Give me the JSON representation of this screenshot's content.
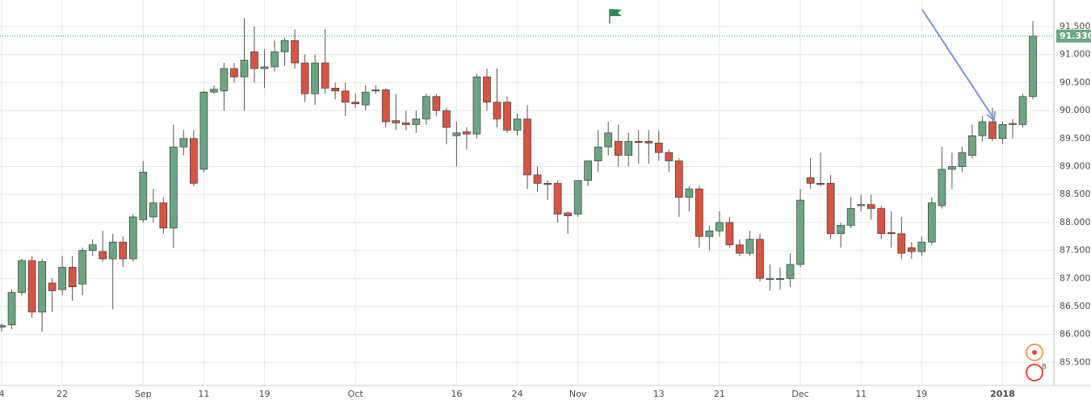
{
  "chart_data": {
    "type": "candlestick",
    "up_color": "#6ba583",
    "down_color": "#d75442",
    "grid": true,
    "ylim": [
      85.088,
      91.975
    ],
    "yticks": [
      {
        "value": 91.5,
        "label": "91.500"
      },
      {
        "value": 91.0,
        "label": "91.000"
      },
      {
        "value": 90.5,
        "label": "90.500"
      },
      {
        "value": 90.0,
        "label": "90.000"
      },
      {
        "value": 89.5,
        "label": "89.500"
      },
      {
        "value": 89.0,
        "label": "89.000"
      },
      {
        "value": 88.5,
        "label": "88.500"
      },
      {
        "value": 88.0,
        "label": "88.000"
      },
      {
        "value": 87.5,
        "label": "87.500"
      },
      {
        "value": 87.0,
        "label": "87.000"
      },
      {
        "value": 86.5,
        "label": "86.500"
      },
      {
        "value": 86.0,
        "label": "86.000"
      },
      {
        "value": 85.5,
        "label": "85.500"
      }
    ],
    "xticks": [
      {
        "value": 0,
        "label": "4"
      },
      {
        "value": 6,
        "label": "22"
      },
      {
        "value": 14,
        "label": "Sep"
      },
      {
        "value": 20,
        "label": "11"
      },
      {
        "value": 26,
        "label": "19"
      },
      {
        "value": 35,
        "label": "Oct"
      },
      {
        "value": 45,
        "label": "16"
      },
      {
        "value": 51,
        "label": "24"
      },
      {
        "value": 57,
        "label": "Nov"
      },
      {
        "value": 65,
        "label": "13"
      },
      {
        "value": 71,
        "label": "21"
      },
      {
        "value": 79,
        "label": "Dec"
      },
      {
        "value": 85,
        "label": "11"
      },
      {
        "value": 91,
        "label": "19"
      },
      {
        "value": 99,
        "label": "2018"
      }
    ],
    "last_price": {
      "value": 91.33,
      "label": "91.330"
    },
    "open": [
      86.13,
      86.17,
      86.75,
      87.32,
      86.4,
      86.92,
      86.8,
      87.2,
      86.9,
      87.5,
      87.48,
      87.35,
      87.65,
      87.35,
      88.05,
      88.1,
      88.35,
      87.9,
      89.35,
      89.5,
      88.95,
      90.33,
      90.35,
      90.75,
      90.6,
      91.05,
      90.75,
      90.78,
      91.05,
      91.25,
      90.85,
      90.3,
      90.85,
      90.4,
      90.35,
      90.15,
      90.1,
      90.35,
      90.37,
      89.82,
      89.78,
      89.75,
      89.85,
      90.25,
      90.0,
      89.55,
      89.62,
      89.58,
      90.6,
      90.15,
      90.15,
      89.65,
      89.85,
      88.85,
      88.7,
      88.7,
      88.17,
      88.15,
      88.75,
      89.1,
      89.35,
      89.45,
      89.2,
      89.45,
      89.45,
      89.42,
      89.25,
      89.1,
      88.45,
      88.6,
      87.75,
      87.85,
      88.0,
      87.6,
      87.45,
      87.7,
      86.98,
      86.98,
      87.0,
      87.25,
      88.8,
      88.7,
      88.7,
      87.8,
      87.95,
      88.3,
      88.32,
      88.25,
      87.82,
      87.8,
      87.55,
      87.48,
      87.65,
      88.3,
      88.95,
      89.0,
      89.2,
      89.55,
      89.8,
      89.5,
      89.75,
      89.75,
      90.25
    ],
    "high": [
      86.2,
      86.8,
      87.35,
      87.4,
      87.35,
      87.0,
      87.4,
      87.4,
      87.55,
      87.7,
      87.85,
      87.8,
      87.75,
      88.15,
      89.1,
      88.6,
      88.45,
      89.75,
      89.65,
      89.65,
      90.35,
      90.45,
      90.85,
      90.85,
      91.65,
      91.5,
      91.1,
      91.25,
      91.3,
      91.45,
      91.0,
      91.0,
      91.45,
      90.5,
      90.5,
      90.3,
      90.45,
      90.45,
      90.4,
      90.3,
      90.0,
      90.0,
      90.3,
      90.3,
      90.05,
      89.8,
      89.7,
      90.65,
      90.75,
      90.75,
      90.25,
      89.95,
      90.1,
      89.0,
      88.75,
      88.75,
      88.2,
      88.75,
      89.1,
      89.65,
      89.8,
      89.75,
      89.6,
      89.65,
      89.65,
      89.65,
      89.3,
      89.15,
      88.65,
      88.65,
      87.95,
      88.2,
      88.1,
      87.7,
      87.85,
      87.8,
      87.25,
      87.2,
      87.45,
      88.6,
      89.15,
      89.25,
      88.85,
      88.0,
      88.45,
      88.5,
      88.5,
      88.3,
      88.2,
      88.1,
      87.65,
      87.75,
      88.45,
      89.35,
      89.25,
      89.35,
      89.75,
      89.9,
      90.05,
      89.8,
      89.85,
      90.3,
      91.6
    ],
    "low": [
      86.05,
      86.1,
      86.7,
      86.3,
      86.05,
      86.4,
      86.7,
      86.6,
      86.7,
      87.4,
      87.3,
      86.45,
      87.2,
      87.3,
      88.0,
      88.0,
      87.8,
      87.55,
      89.2,
      88.65,
      88.9,
      90.3,
      90.0,
      90.5,
      90.0,
      90.5,
      90.4,
      90.7,
      90.8,
      90.75,
      90.15,
      90.1,
      90.3,
      90.2,
      89.9,
      90.05,
      90.0,
      90.3,
      89.7,
      89.65,
      89.65,
      89.6,
      89.75,
      89.9,
      89.4,
      89.0,
      89.3,
      89.5,
      90.0,
      89.7,
      89.6,
      89.55,
      88.6,
      88.55,
      88.4,
      88.0,
      87.8,
      88.1,
      88.65,
      88.9,
      89.2,
      89.0,
      89.0,
      89.05,
      89.05,
      89.1,
      88.9,
      88.1,
      88.2,
      87.55,
      87.5,
      87.75,
      87.55,
      87.4,
      87.4,
      86.95,
      86.78,
      86.8,
      86.85,
      87.2,
      88.6,
      88.65,
      87.7,
      87.55,
      87.9,
      88.2,
      88.05,
      87.7,
      87.55,
      87.35,
      87.35,
      87.4,
      87.6,
      88.25,
      88.6,
      88.9,
      89.15,
      89.45,
      89.45,
      89.4,
      89.5,
      89.7,
      90.2
    ],
    "close": [
      86.16,
      86.75,
      87.32,
      86.4,
      87.3,
      86.78,
      87.2,
      86.85,
      87.5,
      87.6,
      87.35,
      87.65,
      87.35,
      88.1,
      88.9,
      88.35,
      87.9,
      89.35,
      89.5,
      88.7,
      90.33,
      90.38,
      90.75,
      90.6,
      90.9,
      90.75,
      90.78,
      91.05,
      91.25,
      90.85,
      90.3,
      90.85,
      90.4,
      90.35,
      90.15,
      90.12,
      90.33,
      90.37,
      89.8,
      89.78,
      89.75,
      89.85,
      90.25,
      90.0,
      89.7,
      89.6,
      89.58,
      90.6,
      90.15,
      89.85,
      89.65,
      89.85,
      88.85,
      88.7,
      88.68,
      88.15,
      88.12,
      88.75,
      89.1,
      89.35,
      89.6,
      89.2,
      89.45,
      89.43,
      89.42,
      89.25,
      89.1,
      88.45,
      88.6,
      87.75,
      87.85,
      88.0,
      87.6,
      87.45,
      87.7,
      87.0,
      87.0,
      87.0,
      87.25,
      88.4,
      88.7,
      88.68,
      87.8,
      87.95,
      88.25,
      88.32,
      88.25,
      87.8,
      87.8,
      87.45,
      87.48,
      87.65,
      88.35,
      88.95,
      89.0,
      89.25,
      89.55,
      89.8,
      89.5,
      89.75,
      89.77,
      90.25,
      91.33
    ]
  },
  "badge": "8"
}
